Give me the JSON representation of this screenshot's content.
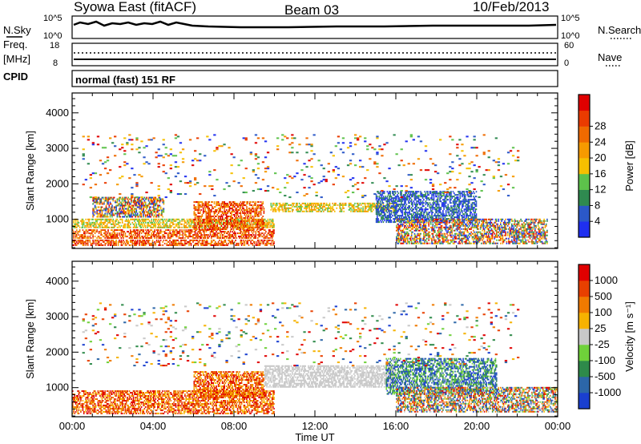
{
  "header": {
    "station": "Syowa East (fitACF)",
    "beam": "Beam 03",
    "date": "10/Feb/2013"
  },
  "panel_labels": {
    "nsky": "N.Sky",
    "nsky_exp_top": "10^5",
    "nsky_exp_bot": "10^0",
    "nsearch": "N.Search",
    "nsearch_exp_top": "10^5",
    "nsearch_exp_bot": "10^0",
    "freq": "Freq.",
    "freq_unit": "[MHz]",
    "freq_top": "18",
    "freq_bot": "8",
    "nave": "Nave",
    "nave_top": "60",
    "nave_bot": "0",
    "cpid": "CPID",
    "cpid_text": "normal (fast) 151 RF"
  },
  "chart_data": [
    {
      "type": "heatmap",
      "name": "power",
      "ylabel": "Slant Range [km]",
      "yticks": [
        "1000",
        "2000",
        "3000",
        "4000"
      ],
      "ylim": [
        180,
        4560
      ],
      "colorbar": {
        "label": "Power [dB]",
        "ticks": [
          "4",
          "8",
          "12",
          "16",
          "20",
          "24",
          "28"
        ],
        "colors": [
          "#1f2ff0",
          "#2b58c8",
          "#2f8a50",
          "#5dc24b",
          "#f6c000",
          "#f69a00",
          "#ef6a00",
          "#ea3b00",
          "#e00000"
        ]
      },
      "bands": [
        {
          "x": [
            0.0,
            10.0
          ],
          "y": [
            250,
            400
          ],
          "level": "high"
        },
        {
          "x": [
            0.0,
            10.0
          ],
          "y": [
            450,
            700
          ],
          "level": "high"
        },
        {
          "x": [
            0.0,
            10.0
          ],
          "y": [
            750,
            1000
          ],
          "level": "mid"
        },
        {
          "x": [
            1.0,
            4.5
          ],
          "y": [
            1050,
            1600
          ],
          "level": "mixed"
        },
        {
          "x": [
            6.0,
            9.5
          ],
          "y": [
            700,
            1500
          ],
          "level": "high"
        },
        {
          "x": [
            9.8,
            16.0
          ],
          "y": [
            1200,
            1450
          ],
          "level": "mid"
        },
        {
          "x": [
            15.0,
            20.0
          ],
          "y": [
            900,
            1800
          ],
          "level": "low"
        },
        {
          "x": [
            16.0,
            23.5
          ],
          "y": [
            300,
            1000
          ],
          "level": "mixed"
        },
        {
          "x": [
            0.5,
            22.0
          ],
          "y": [
            1600,
            3400
          ],
          "level": "sparse"
        }
      ]
    },
    {
      "type": "heatmap",
      "name": "velocity",
      "ylabel": "Slant Range [km]",
      "yticks": [
        "1000",
        "2000",
        "3000",
        "4000"
      ],
      "ylim": [
        180,
        4560
      ],
      "xlabel": "Time UT",
      "xticks": [
        "00:00",
        "04:00",
        "08:00",
        "12:00",
        "16:00",
        "20:00",
        "00:00"
      ],
      "xlim": [
        0,
        24
      ],
      "colorbar": {
        "label": "Velocity [m s⁻¹]",
        "ticks": [
          "1000",
          "500",
          "100",
          "25",
          "-25",
          "-100",
          "-500",
          "-1000"
        ],
        "colors": [
          "#1a3fd0",
          "#2c66a8",
          "#2e8a4a",
          "#6fd13a",
          "#c8c8c8",
          "#f6b200",
          "#f07a00",
          "#e84000",
          "#e00000"
        ]
      },
      "bands": [
        {
          "x": [
            0.0,
            10.0
          ],
          "y": [
            250,
            900
          ],
          "level": "negative"
        },
        {
          "x": [
            6.0,
            9.5
          ],
          "y": [
            700,
            1450
          ],
          "level": "negative"
        },
        {
          "x": [
            9.5,
            16.0
          ],
          "y": [
            1000,
            1600
          ],
          "level": "neutral"
        },
        {
          "x": [
            15.5,
            21.0
          ],
          "y": [
            800,
            1800
          ],
          "level": "positive"
        },
        {
          "x": [
            16.0,
            24.0
          ],
          "y": [
            300,
            1000
          ],
          "level": "mixed"
        },
        {
          "x": [
            0.5,
            22.0
          ],
          "y": [
            1600,
            3400
          ],
          "level": "sparse"
        }
      ]
    }
  ]
}
